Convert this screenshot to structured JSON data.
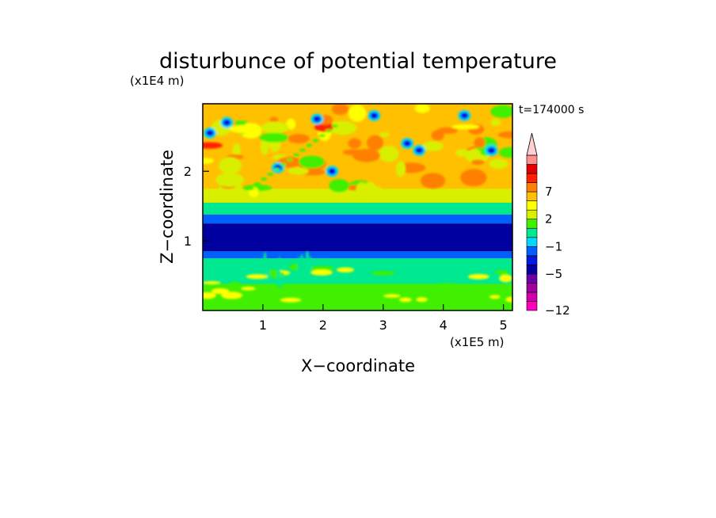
{
  "chart_data": {
    "type": "heatmap",
    "title": "disturbunce of potential temperature",
    "time_label": "t=174000 s",
    "xlabel": "X−coordinate",
    "ylabel": "Z−coordinate",
    "x_scale_label": "(x1E5 m)",
    "y_scale_label": "(x1E4 m)",
    "xlim": [
      0,
      5.15
    ],
    "ylim": [
      0,
      2.97
    ],
    "x_ticks": [
      1,
      2,
      3,
      4,
      5
    ],
    "y_ticks": [
      1,
      2
    ],
    "x_tick_labels": [
      "1",
      "2",
      "3",
      "4",
      "5"
    ],
    "y_tick_labels": [
      "1",
      "2"
    ],
    "colorbar": {
      "levels": [
        -12,
        -11,
        -9,
        -7,
        -5,
        -4,
        -3,
        -1,
        0,
        1,
        2,
        3,
        5,
        7,
        8,
        9,
        11
      ],
      "colors": [
        "#ff00c0",
        "#d200a8",
        "#a000a0",
        "#6a00a8",
        "#0000a0",
        "#0018e0",
        "#0060ff",
        "#00d8ff",
        "#00e890",
        "#40f000",
        "#d8f000",
        "#ffff00",
        "#ffc000",
        "#ff8000",
        "#ff2000",
        "#e00000",
        "#ff9090",
        "#ffd0d0"
      ],
      "tick_labels": [
        {
          "value": 7,
          "text": "7"
        },
        {
          "value": 2,
          "text": "2"
        },
        {
          "value": -1,
          "text": "−1"
        },
        {
          "value": -5,
          "text": "−5"
        },
        {
          "value": -12,
          "text": "−12"
        }
      ],
      "extend": "max"
    },
    "field_summary": {
      "z_bands": [
        {
          "z": [
            0.0,
            0.12
          ],
          "value": 0.5
        },
        {
          "z": [
            0.12,
            0.38
          ],
          "value": 0.8
        },
        {
          "z": [
            0.38,
            0.75
          ],
          "value": -0.5
        },
        {
          "z": [
            0.75,
            0.85
          ],
          "value": -3.5
        },
        {
          "z": [
            0.85,
            1.25
          ],
          "value": -5.5
        },
        {
          "z": [
            1.25,
            1.38
          ],
          "value": -3.5
        },
        {
          "z": [
            1.38,
            1.55
          ],
          "value": -0.5
        },
        {
          "z": [
            1.55,
            1.75
          ],
          "value": 1.5
        },
        {
          "z": [
            1.75,
            2.97
          ],
          "value": 3.0
        }
      ]
    }
  }
}
